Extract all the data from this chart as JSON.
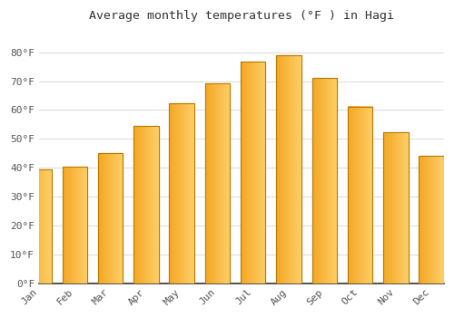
{
  "title": "Average monthly temperatures (°F ) in Hagi",
  "months": [
    "Jan",
    "Feb",
    "Mar",
    "Apr",
    "May",
    "Jun",
    "Jul",
    "Aug",
    "Sep",
    "Oct",
    "Nov",
    "Dec"
  ],
  "values": [
    39.5,
    40.3,
    45.0,
    54.5,
    62.2,
    69.1,
    76.8,
    79.0,
    71.2,
    61.2,
    52.3,
    44.1
  ],
  "bar_color_left": "#F5A623",
  "bar_color_right": "#FDD068",
  "background_color": "#FFFFFF",
  "plot_bg_color": "#FFFFFF",
  "grid_color": "#DDDDDD",
  "text_color": "#555555",
  "title_color": "#333333",
  "axis_color": "#333333",
  "ylim": [
    0,
    88
  ],
  "yticks": [
    0,
    10,
    20,
    30,
    40,
    50,
    60,
    70,
    80
  ],
  "ytick_labels": [
    "0°F",
    "10°F",
    "20°F",
    "30°F",
    "40°F",
    "50°F",
    "60°F",
    "70°F",
    "80°F"
  ]
}
